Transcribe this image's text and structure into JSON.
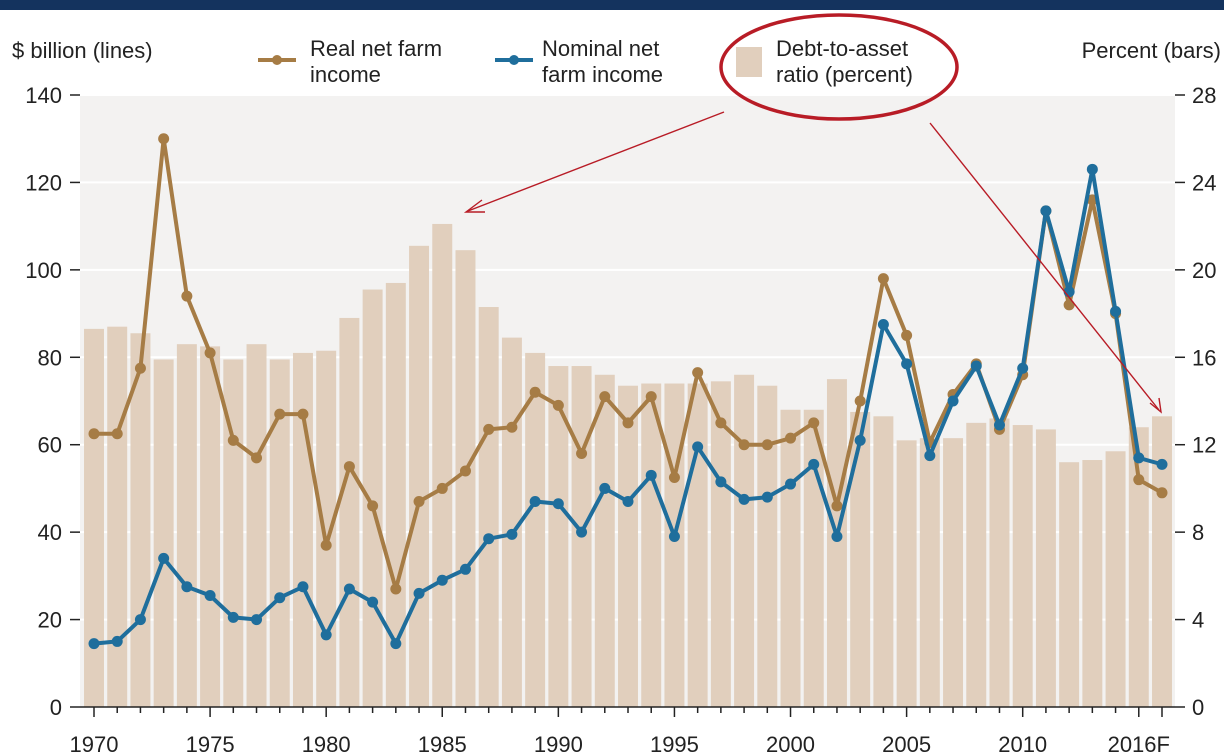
{
  "chart_data": {
    "type": "bar+line",
    "left_axis_label": "$ billion (lines)",
    "right_axis_label": "Percent (bars)",
    "left_ylim": [
      0,
      140
    ],
    "right_ylim": [
      0,
      28
    ],
    "left_ticks": [
      0,
      20,
      40,
      60,
      80,
      100,
      120,
      140
    ],
    "right_ticks": [
      0,
      4,
      8,
      12,
      16,
      20,
      24,
      28
    ],
    "x_tick_labels": [
      "1970",
      "1975",
      "1980",
      "1985",
      "1990",
      "1995",
      "2000",
      "2005",
      "2010",
      "2016F"
    ],
    "years": [
      1970,
      1971,
      1972,
      1973,
      1974,
      1975,
      1976,
      1977,
      1978,
      1979,
      1980,
      1981,
      1982,
      1983,
      1984,
      1985,
      1986,
      1987,
      1988,
      1989,
      1990,
      1991,
      1992,
      1993,
      1994,
      1995,
      1996,
      1997,
      1998,
      1999,
      2000,
      2001,
      2002,
      2003,
      2004,
      2005,
      2006,
      2007,
      2008,
      2009,
      2010,
      2011,
      2012,
      2013,
      2014,
      2015,
      2016
    ],
    "legend": {
      "real": "Real net farm income",
      "nominal": "Nominal net farm income",
      "debt": "Debt-to-asset ratio (percent)"
    },
    "series": [
      {
        "name": "Real net farm income",
        "axis": "left",
        "kind": "line",
        "color": "#a67c45",
        "values": [
          62.5,
          62.5,
          77.5,
          130,
          94,
          81,
          61,
          57,
          67,
          67,
          37,
          55,
          46,
          27,
          47,
          50,
          54,
          63.5,
          64,
          72,
          69,
          58,
          71,
          65,
          71,
          52.5,
          76.5,
          65,
          60,
          60,
          61.5,
          65,
          46,
          70,
          98,
          85,
          60.5,
          71.5,
          78.5,
          63.5,
          76,
          113.5,
          92,
          116,
          90,
          52,
          49
        ]
      },
      {
        "name": "Nominal net farm income",
        "axis": "left",
        "kind": "line",
        "color": "#1f6e9c",
        "values": [
          14.5,
          15,
          20,
          34,
          27.5,
          25.5,
          20.5,
          20,
          25,
          27.5,
          16.5,
          27,
          24,
          14.5,
          26,
          29,
          31.5,
          38.5,
          39.5,
          47,
          46.5,
          40,
          50,
          47,
          53,
          39,
          59.5,
          51.5,
          47.5,
          48,
          51,
          55.5,
          39,
          61,
          87.5,
          78.5,
          57.5,
          70,
          78,
          64.5,
          77.5,
          113.5,
          95,
          123,
          90.5,
          57,
          55.5
        ]
      },
      {
        "name": "Debt-to-asset ratio (percent)",
        "axis": "right",
        "kind": "bar",
        "color": "#e1cfbd",
        "values": [
          17.3,
          17.4,
          17.1,
          15.9,
          16.6,
          16.5,
          15.9,
          16.6,
          15.9,
          16.2,
          16.3,
          17.8,
          19.1,
          19.4,
          21.1,
          22.1,
          20.9,
          18.3,
          16.9,
          16.2,
          15.6,
          15.6,
          15.2,
          14.7,
          14.8,
          14.8,
          14.8,
          14.9,
          15.2,
          14.7,
          13.6,
          13.6,
          15,
          13.5,
          13.3,
          12.2,
          12.3,
          12.3,
          13,
          13.2,
          12.9,
          12.7,
          11.2,
          11.3,
          11.7,
          12.8,
          13.3
        ]
      }
    ]
  },
  "colors": {
    "top_bar": "#14335e",
    "plot_background": "#f3f2f1",
    "gridline": "#ffffff",
    "highlight_ellipse": "#b81c26",
    "arrow": "#b81c26"
  }
}
